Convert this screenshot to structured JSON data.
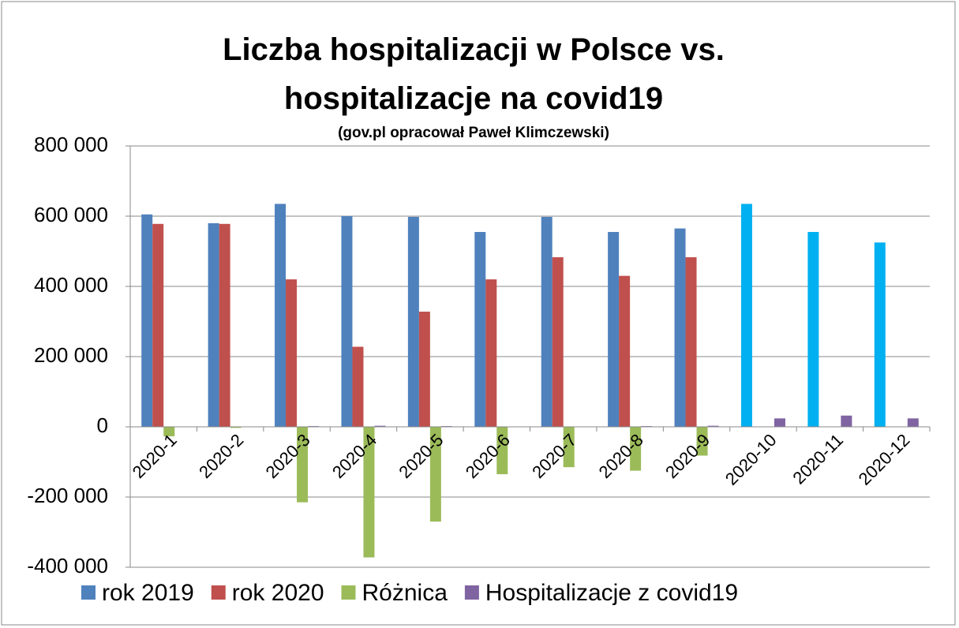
{
  "chart_data": {
    "type": "bar",
    "title": "Liczba hospitalizacji w Polsce  vs. hospitalizacje na covid19",
    "subtitle": "(gov.pl opracował Paweł Klimczewski)",
    "categories": [
      "2020-1",
      "2020-2",
      "2020-3",
      "2020-4",
      "2020-5",
      "2020-6",
      "2020-7",
      "2020-8",
      "2020-9",
      "2020-10",
      "2020-11",
      "2020-12"
    ],
    "series": [
      {
        "name": "rok 2019",
        "color": "#4f81bd",
        "colors": [
          "#4f81bd",
          "#4f81bd",
          "#4f81bd",
          "#4f81bd",
          "#4f81bd",
          "#4f81bd",
          "#4f81bd",
          "#4f81bd",
          "#4f81bd",
          "#00b0f0",
          "#00b0f0",
          "#00b0f0"
        ],
        "values": [
          605000,
          580000,
          635000,
          600000,
          598000,
          555000,
          598000,
          555000,
          565000,
          635000,
          555000,
          525000
        ]
      },
      {
        "name": "rok 2020",
        "color": "#c0504d",
        "values": [
          578000,
          578000,
          420000,
          228000,
          328000,
          420000,
          483000,
          430000,
          483000,
          null,
          null,
          null
        ]
      },
      {
        "name": "Różnica",
        "color": "#9bbb59",
        "values": [
          -27000,
          -3000,
          -215000,
          -372000,
          -270000,
          -135000,
          -115000,
          -125000,
          -82000,
          null,
          null,
          null
        ]
      },
      {
        "name": "Hospitalizacje z covid19",
        "color": "#8064a2",
        "values": [
          0,
          0,
          2000,
          3000,
          2000,
          1000,
          1000,
          2000,
          3000,
          24000,
          32000,
          24000
        ]
      }
    ],
    "ylim": [
      -400000,
      800000
    ],
    "yticks": [
      {
        "value": -400000,
        "label": "-400 000"
      },
      {
        "value": -200000,
        "label": "-200 000"
      },
      0,
      {
        "value": 200000,
        "label": "200 000"
      },
      {
        "value": 400000,
        "label": "400 000"
      },
      {
        "value": 600000,
        "label": "600 000"
      },
      {
        "value": 800000,
        "label": "800 000"
      }
    ],
    "grid": true,
    "legend": "bottom"
  }
}
